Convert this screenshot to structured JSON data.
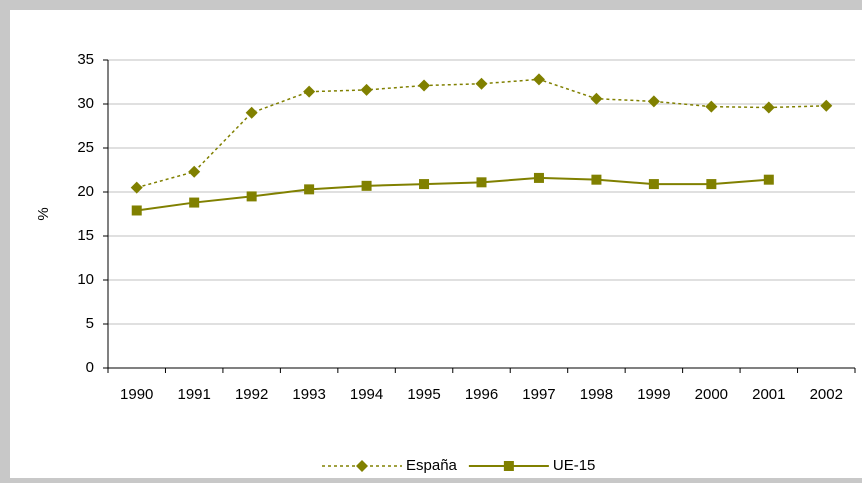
{
  "chart_data": {
    "type": "line",
    "y_label": "%",
    "categories": [
      "1990",
      "1991",
      "1992",
      "1993",
      "1994",
      "1995",
      "1996",
      "1997",
      "1998",
      "1999",
      "2000",
      "2001",
      "2002"
    ],
    "series": [
      {
        "name": "España",
        "color": "#808000",
        "line_style": "dashed",
        "marker": "diamond",
        "values": [
          20.5,
          22.3,
          29,
          31.4,
          31.6,
          32.1,
          32.3,
          32.8,
          30.6,
          30.3,
          29.7,
          29.6,
          29.8
        ]
      },
      {
        "name": "UE-15",
        "color": "#808000",
        "line_style": "solid",
        "marker": "square",
        "values": [
          17.9,
          18.8,
          19.5,
          20.3,
          20.7,
          20.9,
          21.1,
          21.6,
          21.4,
          20.9,
          20.9,
          21.4,
          null
        ]
      }
    ],
    "ylim": [
      0,
      35
    ],
    "yticks": [
      0,
      5,
      10,
      15,
      20,
      25,
      30,
      35
    ],
    "grid": true,
    "legend": "bottom"
  }
}
